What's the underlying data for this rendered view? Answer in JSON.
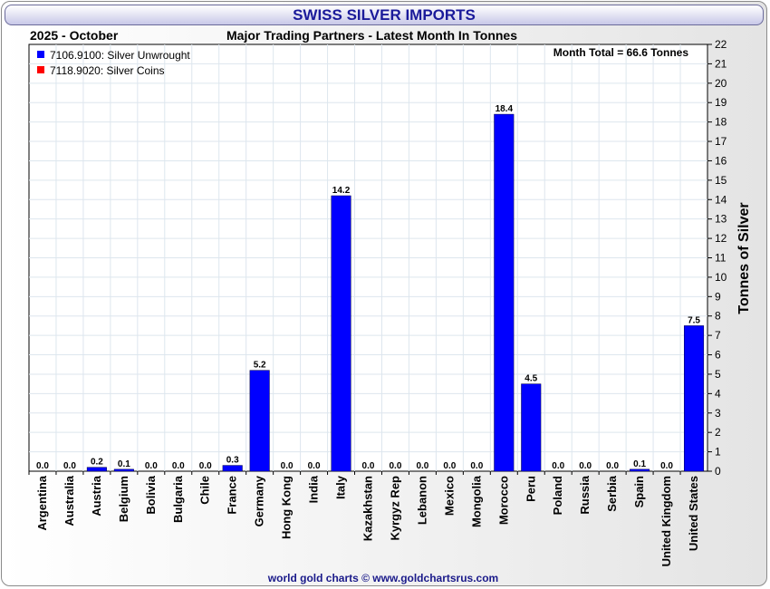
{
  "header": {
    "title": "SWISS SILVER IMPORTS",
    "period": "2025 - October",
    "subtitle": "Major Trading Partners - Latest Month In Tonnes"
  },
  "footer": {
    "credit": "world gold charts © www.goldchartsrus.com"
  },
  "colors": {
    "unwrought": "#0000ff",
    "coins": "#ff0000",
    "title_text": "#1a1a9a"
  },
  "chart_data": {
    "type": "bar",
    "ylabel": "Tonnes of Silver",
    "ylim": [
      0,
      22
    ],
    "yticks": [
      0,
      1,
      2,
      3,
      4,
      5,
      6,
      7,
      8,
      9,
      10,
      11,
      12,
      13,
      14,
      15,
      16,
      17,
      18,
      19,
      20,
      21,
      22
    ],
    "annotation": "Month Total = 66.6 Tonnes",
    "legend_position": "top-left",
    "grid": true,
    "categories": [
      "Argentina",
      "Australia",
      "Austria",
      "Belgium",
      "Bolivia",
      "Bulgaria",
      "Chile",
      "France",
      "Germany",
      "Hong Kong",
      "India",
      "Italy",
      "Kazakhstan",
      "Kyrgyz Rep",
      "Lebanon",
      "Mexico",
      "Mongolia",
      "Morocco",
      "Peru",
      "Poland",
      "Russia",
      "Serbia",
      "Spain",
      "United Kingdom",
      "United States"
    ],
    "series": [
      {
        "name": "7106.9100: Silver Unwrought",
        "color": "#0000ff",
        "values": [
          0.0,
          0.0,
          0.2,
          0.1,
          0.0,
          0.0,
          0.0,
          0.3,
          5.2,
          0.0,
          0.0,
          14.2,
          0.0,
          0.0,
          0.0,
          0.0,
          0.0,
          18.4,
          4.5,
          0.0,
          0.0,
          0.0,
          0.1,
          0.0,
          7.5
        ]
      },
      {
        "name": "7118.9020: Silver Coins",
        "color": "#ff0000",
        "values": [
          0,
          0,
          0,
          0,
          0,
          0,
          0,
          0,
          0,
          0,
          0,
          0,
          0,
          0,
          0,
          0,
          0,
          0,
          0,
          0,
          0,
          0,
          0,
          0,
          0
        ]
      }
    ],
    "data_labels": [
      "0.0",
      "0.0",
      "0.2",
      "0.1",
      "0.0",
      "0.0",
      "0.0",
      "0.3",
      "5.2",
      "0.0",
      "0.0",
      "14.2",
      "0.0",
      "0.0",
      "0.0",
      "0.0",
      "0.0",
      "18.4",
      "4.5",
      "0.0",
      "0.0",
      "0.0",
      "0.1",
      "0.0",
      "7.5"
    ]
  }
}
